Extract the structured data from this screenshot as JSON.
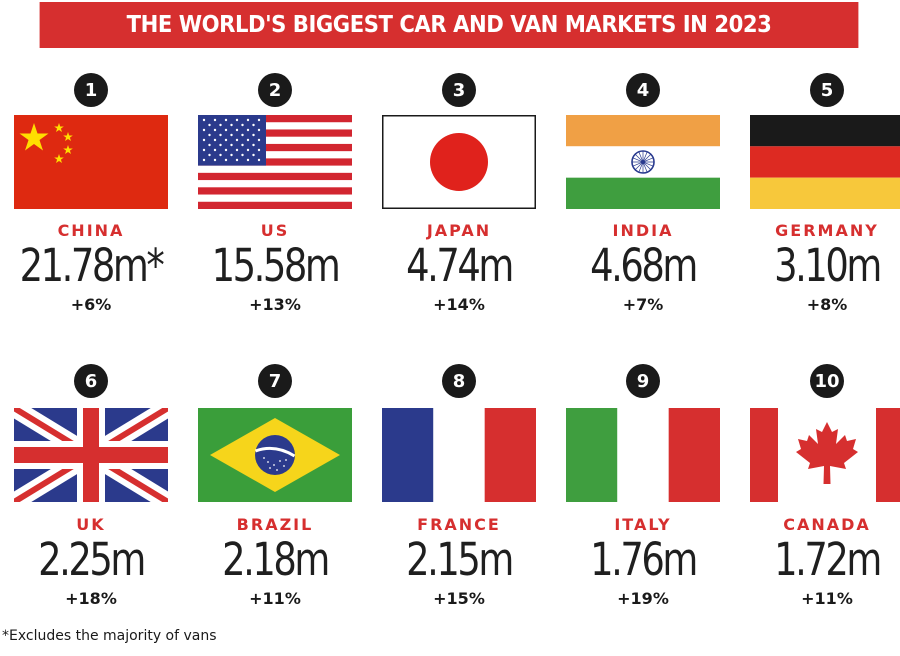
{
  "title": "THE WORLD'S BIGGEST CAR AND VAN MARKETS IN 2023",
  "markets": [
    {
      "rank": "1",
      "country": "CHINA",
      "value": "21.78m*",
      "change": "+6%",
      "flag": "china-flag-icon"
    },
    {
      "rank": "2",
      "country": "US",
      "value": "15.58m",
      "change": "+13%",
      "flag": "us-flag-icon"
    },
    {
      "rank": "3",
      "country": "JAPAN",
      "value": "4.74m",
      "change": "+14%",
      "flag": "japan-flag-icon"
    },
    {
      "rank": "4",
      "country": "INDIA",
      "value": "4.68m",
      "change": "+7%",
      "flag": "india-flag-icon"
    },
    {
      "rank": "5",
      "country": "GERMANY",
      "value": "3.10m",
      "change": "+8%",
      "flag": "germany-flag-icon"
    },
    {
      "rank": "6",
      "country": "UK",
      "value": "2.25m",
      "change": "+18%",
      "flag": "uk-flag-icon"
    },
    {
      "rank": "7",
      "country": "BRAZIL",
      "value": "2.18m",
      "change": "+11%",
      "flag": "brazil-flag-icon"
    },
    {
      "rank": "8",
      "country": "FRANCE",
      "value": "2.15m",
      "change": "+15%",
      "flag": "france-flag-icon"
    },
    {
      "rank": "9",
      "country": "ITALY",
      "value": "1.76m",
      "change": "+19%",
      "flag": "italy-flag-icon"
    },
    {
      "rank": "10",
      "country": "CANADA",
      "value": "1.72m",
      "change": "+11%",
      "flag": "canada-flag-icon"
    }
  ],
  "footnote": "*Excludes the majority of vans",
  "colors": {
    "accent": "#d62f2f",
    "text": "#1a1a1a",
    "badge": "#1a1a1a"
  }
}
